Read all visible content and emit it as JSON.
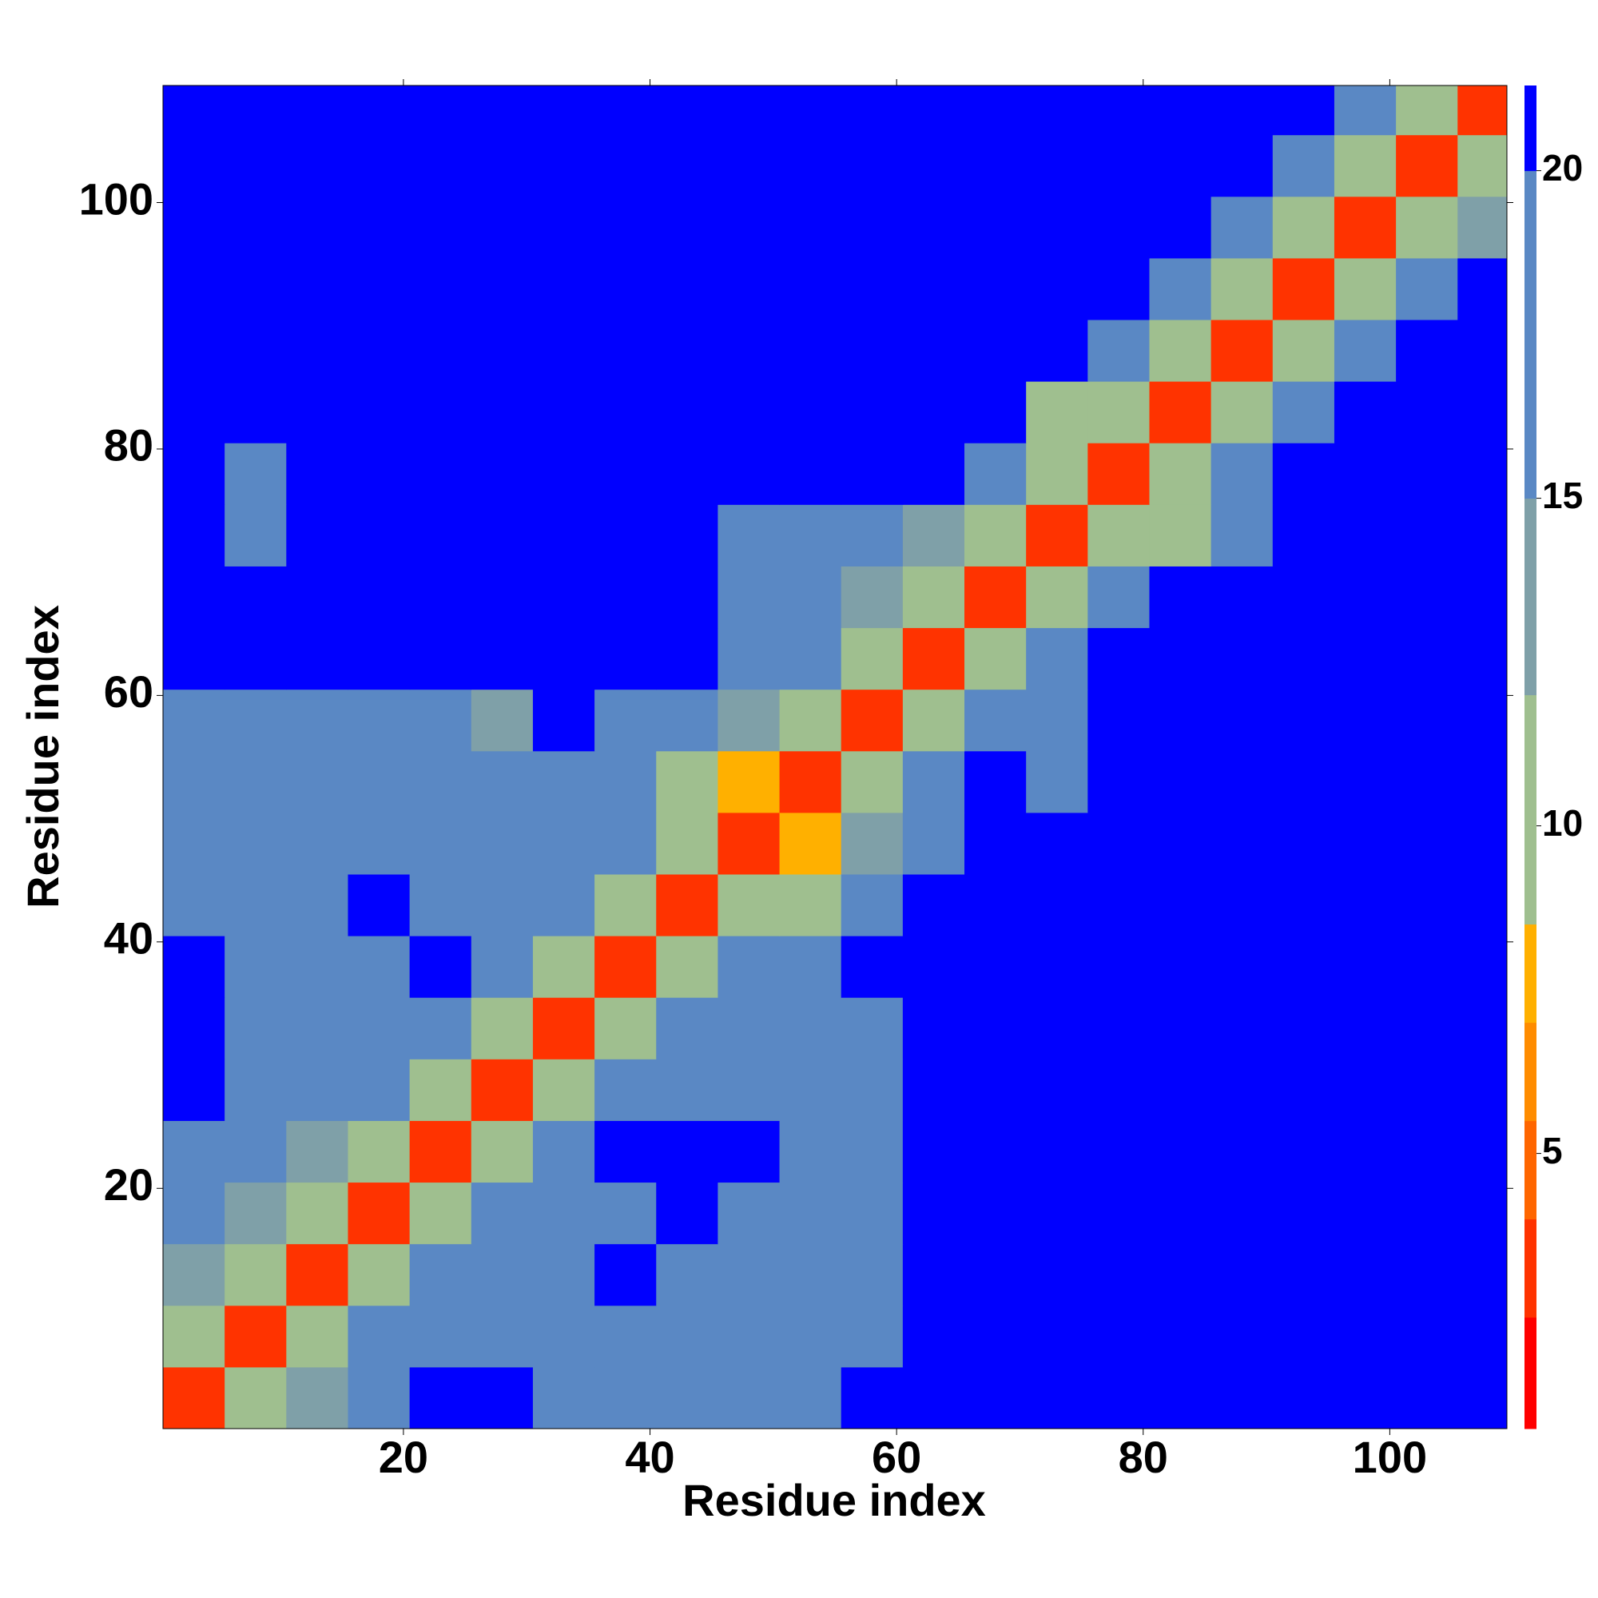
{
  "chart_data": {
    "type": "heatmap",
    "xlabel": "Residue index",
    "ylabel": "Residue index",
    "x": [
      0.5,
      5.5,
      10.5,
      15.5,
      20.5,
      25.5,
      30.5,
      35.5,
      40.5,
      45.5,
      50.5,
      55.5,
      60.5,
      65.5,
      70.5,
      75.5,
      80.5,
      85.5,
      90.5,
      95.5,
      100.5,
      105.5,
      109.5
    ],
    "y": [
      0.5,
      5.5,
      10.5,
      15.5,
      20.5,
      25.5,
      30.5,
      35.5,
      40.5,
      45.5,
      50.5,
      55.5,
      60.5,
      65.5,
      70.5,
      75.5,
      80.5,
      85.5,
      90.5,
      95.5,
      100.5,
      105.5,
      109.5
    ],
    "z": [
      [
        3,
        9,
        13,
        17,
        20,
        21,
        19,
        19,
        18,
        18,
        19,
        20,
        21,
        21,
        20,
        21,
        21,
        21,
        21,
        21,
        21,
        21
      ],
      [
        9,
        3,
        9,
        15,
        19,
        19,
        18,
        17,
        17,
        18,
        18,
        19,
        21,
        21,
        20,
        20,
        21,
        21,
        21,
        20,
        20,
        21
      ],
      [
        13,
        9,
        3,
        10,
        16,
        18,
        19,
        20,
        19,
        19,
        18,
        19,
        21,
        21,
        21,
        21,
        21,
        21,
        21,
        21,
        21,
        21
      ],
      [
        16,
        14,
        10,
        3,
        10,
        16,
        18,
        19,
        20,
        19,
        17,
        18,
        21,
        21,
        21,
        21,
        21,
        21,
        21,
        21,
        21,
        21
      ],
      [
        19,
        17,
        14,
        9,
        3,
        11,
        15,
        20,
        20,
        20,
        17,
        18,
        21,
        21,
        21,
        21,
        21,
        21,
        21,
        21,
        21,
        21
      ],
      [
        20,
        19,
        17,
        16,
        10,
        3,
        10,
        16,
        18,
        19,
        19,
        15,
        21,
        20,
        21,
        21,
        21,
        21,
        21,
        21,
        21,
        21
      ],
      [
        20,
        18,
        18,
        16,
        15,
        10,
        3,
        11,
        15,
        19,
        19,
        19,
        21,
        21,
        21,
        21,
        21,
        21,
        21,
        21,
        21,
        21
      ],
      [
        20,
        17,
        17,
        19,
        20,
        16,
        11,
        3,
        11,
        16,
        19,
        20,
        21,
        21,
        21,
        21,
        21,
        21,
        21,
        21,
        21,
        21
      ],
      [
        19,
        17,
        18,
        20,
        19,
        15,
        16,
        11,
        3,
        10,
        11,
        15,
        20,
        21,
        21,
        21,
        21,
        21,
        21,
        21,
        21,
        21
      ],
      [
        18,
        18,
        19,
        19,
        19,
        18,
        18,
        16,
        10,
        3,
        8,
        12,
        19,
        20,
        20,
        20,
        21,
        20,
        21,
        21,
        21,
        21
      ],
      [
        18,
        17,
        18,
        19,
        19,
        19,
        19,
        16,
        9,
        8,
        3,
        10,
        17,
        20,
        19,
        20,
        21,
        21,
        21,
        21,
        21,
        21
      ],
      [
        18,
        17,
        17,
        19,
        18,
        14,
        20,
        19,
        15,
        12,
        10,
        3,
        11,
        16,
        15,
        21,
        21,
        21,
        21,
        21,
        21,
        21
      ],
      [
        21,
        20,
        21,
        21,
        21,
        20,
        21,
        21,
        20,
        18,
        17,
        11,
        3,
        10,
        15,
        20,
        21,
        21,
        21,
        21,
        21,
        21
      ],
      [
        21,
        20,
        20,
        21,
        21,
        20,
        21,
        21,
        20,
        19,
        15,
        13,
        10,
        3,
        10,
        17,
        21,
        21,
        21,
        21,
        21,
        21
      ],
      [
        20,
        19,
        21,
        21,
        21,
        21,
        21,
        21,
        20,
        18,
        18,
        17,
        14,
        10,
        3,
        10,
        9,
        19,
        21,
        21,
        21,
        21
      ],
      [
        21,
        19,
        21,
        21,
        21,
        21,
        21,
        21,
        21,
        20,
        20,
        21,
        20,
        15,
        9,
        3,
        10,
        15,
        21,
        21,
        21,
        21
      ],
      [
        21,
        21,
        21,
        21,
        21,
        20,
        21,
        21,
        21,
        20,
        21,
        21,
        21,
        21,
        10,
        10,
        3,
        11,
        19,
        21,
        21,
        21
      ],
      [
        21,
        20,
        21,
        21,
        21,
        21,
        21,
        21,
        21,
        21,
        21,
        21,
        21,
        21,
        20,
        15,
        11,
        3,
        11,
        18,
        21,
        21
      ],
      [
        21,
        21,
        21,
        21,
        21,
        21,
        21,
        21,
        21,
        21,
        21,
        21,
        21,
        21,
        21,
        21,
        19,
        11,
        3,
        11,
        18,
        21
      ],
      [
        21,
        21,
        21,
        21,
        21,
        21,
        21,
        21,
        21,
        21,
        21,
        21,
        21,
        21,
        21,
        21,
        21,
        18,
        11,
        3,
        10,
        14
      ],
      [
        21,
        20,
        21,
        21,
        21,
        21,
        21,
        21,
        21,
        21,
        21,
        21,
        21,
        21,
        21,
        21,
        21,
        21,
        17,
        10,
        3,
        9
      ],
      [
        21,
        21,
        21,
        21,
        21,
        21,
        21,
        21,
        21,
        21,
        21,
        21,
        21,
        21,
        21,
        21,
        21,
        21,
        21,
        15,
        9,
        3
      ]
    ],
    "xlim": [
      0.5,
      109.5
    ],
    "ylim": [
      0.5,
      109.5
    ],
    "xticks": [
      20,
      40,
      60,
      80,
      100
    ],
    "yticks": [
      20,
      40,
      60,
      80,
      100
    ],
    "clim": [
      0.8,
      21.3
    ],
    "levels": [
      0.8,
      2.5,
      4,
      5.5,
      7,
      8.5,
      12,
      15,
      20,
      21.3
    ],
    "level_colors": [
      "#ff0000",
      "#ff3300",
      "#ff6600",
      "#ff8c00",
      "#ffb000",
      "#9fbf8f",
      "#7fa0a8",
      "#5a88c4",
      "#0000ff"
    ],
    "cticks": [
      5,
      10,
      15,
      20
    ]
  }
}
